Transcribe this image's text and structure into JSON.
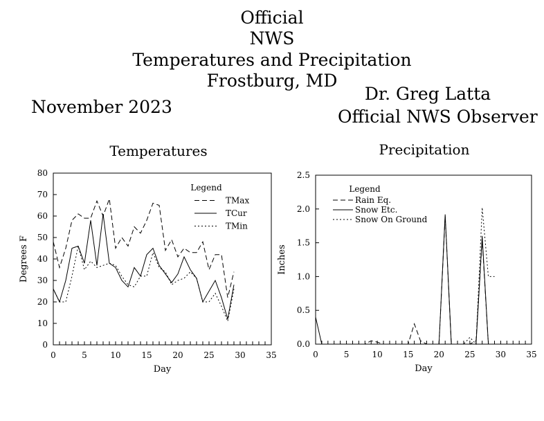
{
  "header": {
    "title_lines": [
      "Official",
      "NWS",
      "Temperatures and Precipitation",
      "Frostburg, MD"
    ],
    "month": "November 2023",
    "observer_name": "Dr. Greg Latta",
    "observer_title": "Official NWS Observer"
  },
  "chart_data": [
    {
      "type": "line",
      "title": "Temperatures",
      "xlabel": "Day",
      "ylabel": "Degrees F",
      "xlim": [
        0,
        35
      ],
      "ylim": [
        0,
        80
      ],
      "xticks": [
        0,
        5,
        10,
        15,
        20,
        25,
        30,
        35
      ],
      "yticks": [
        0,
        10,
        20,
        30,
        40,
        50,
        60,
        70,
        80
      ],
      "legend_title": "Legend",
      "legend_position": "top-right",
      "grid": false,
      "x": [
        0,
        1,
        2,
        3,
        4,
        5,
        6,
        7,
        8,
        9,
        10,
        11,
        12,
        13,
        14,
        15,
        16,
        17,
        18,
        19,
        20,
        21,
        22,
        23,
        24,
        25,
        26,
        27,
        28,
        29
      ],
      "series": [
        {
          "name": "TMax",
          "style": "dashed",
          "values": [
            48,
            36,
            45,
            58,
            61,
            59,
            59,
            67,
            60,
            68,
            45,
            50,
            46,
            55,
            52,
            58,
            66,
            65,
            44,
            49,
            41,
            45,
            43,
            43,
            48,
            35,
            42,
            42,
            22,
            34
          ]
        },
        {
          "name": "TCur",
          "style": "solid",
          "values": [
            26,
            20,
            30,
            45,
            46,
            38,
            58,
            37,
            61,
            38,
            36,
            30,
            27,
            36,
            32,
            42,
            45,
            37,
            33,
            29,
            33,
            41,
            35,
            31,
            20,
            25,
            30,
            22,
            12,
            28
          ]
        },
        {
          "name": "TMin",
          "style": "dotted",
          "values": [
            26,
            20,
            20,
            32,
            46,
            35,
            39,
            36,
            37,
            38,
            37,
            32,
            28,
            27,
            32,
            32,
            43,
            36,
            34,
            28,
            30,
            31,
            34,
            31,
            20,
            20,
            24,
            18,
            11,
            26
          ]
        }
      ]
    },
    {
      "type": "line",
      "title": "Precipitation",
      "xlabel": "Day",
      "ylabel": "Inches",
      "xlim": [
        0,
        35
      ],
      "ylim": [
        0,
        2.5
      ],
      "xticks": [
        0,
        5,
        10,
        15,
        20,
        25,
        30,
        35
      ],
      "yticks": [
        0.0,
        0.5,
        1.0,
        1.5,
        2.0,
        2.5
      ],
      "ytick_labels": [
        "0.0",
        "0.5",
        "1.0",
        "1.5",
        "2.0",
        "2.5"
      ],
      "legend_title": "Legend",
      "legend_position": "top-left",
      "grid": false,
      "x": [
        0,
        1,
        2,
        3,
        4,
        5,
        6,
        7,
        8,
        9,
        10,
        11,
        12,
        13,
        14,
        15,
        16,
        17,
        18,
        19,
        20,
        21,
        22,
        23,
        24,
        25,
        26,
        27,
        28,
        29
      ],
      "series": [
        {
          "name": "Rain Eq.",
          "style": "dashed",
          "values": [
            0,
            0,
            0,
            0,
            0,
            0,
            0,
            0,
            0,
            0.05,
            0.03,
            0,
            0,
            0,
            0,
            0,
            0.3,
            0.05,
            0,
            0,
            0,
            1.9,
            0,
            0,
            0,
            0,
            0.05,
            1.55,
            0,
            null
          ]
        },
        {
          "name": "Snow Etc.",
          "style": "solid",
          "values": [
            0.4,
            0,
            0,
            0,
            0,
            0,
            0,
            0,
            0,
            0,
            0,
            0,
            0,
            0,
            0,
            0,
            0,
            0,
            0,
            0,
            0,
            1.92,
            0,
            0,
            0,
            0,
            0,
            1.6,
            0,
            null
          ]
        },
        {
          "name": "Snow On Ground",
          "style": "dotted",
          "values": [
            0,
            0,
            0,
            0,
            0,
            0,
            0,
            0,
            0,
            0,
            0,
            0,
            0,
            0,
            0,
            0,
            0,
            0,
            0,
            0,
            0,
            0,
            0,
            0,
            0,
            0.1,
            0,
            2.02,
            1.0,
            1.0
          ]
        }
      ]
    }
  ]
}
